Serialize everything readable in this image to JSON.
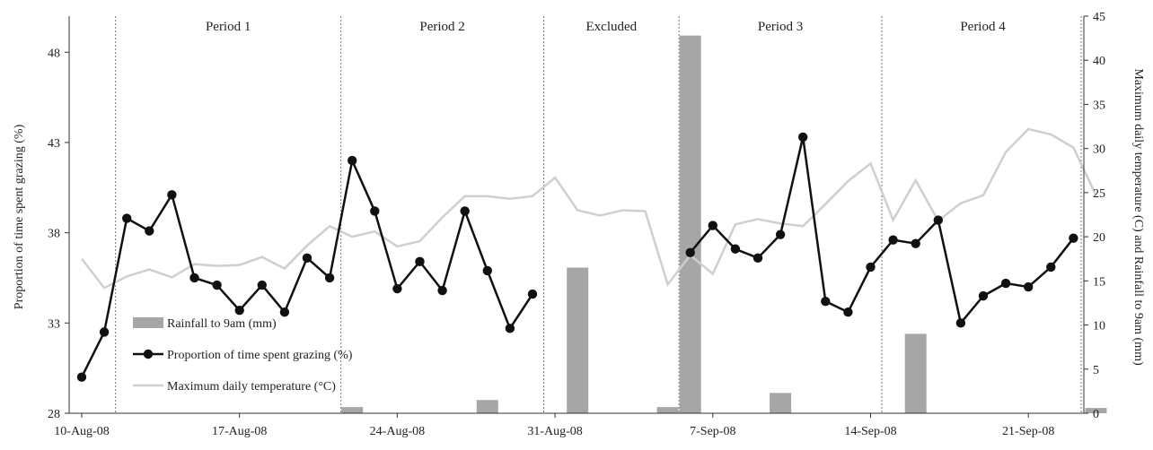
{
  "chart_data": {
    "type": "line",
    "left_axis": {
      "label": "Proportion of time spent grazing (%)",
      "ylim": [
        28,
        50
      ],
      "ticks": [
        28,
        33,
        38,
        43,
        48
      ]
    },
    "right_axis": {
      "label": "Maximum daily temperature (C) and Rainfall to 9am (mm)",
      "ylim": [
        0,
        45
      ],
      "ticks": [
        0,
        5,
        10,
        15,
        20,
        25,
        30,
        35,
        40,
        45
      ]
    },
    "x_axis": {
      "start": "2008-08-10",
      "end": "2008-09-25",
      "tick_dates": [
        "2008-08-10",
        "2008-08-17",
        "2008-08-24",
        "2008-08-31",
        "2008-09-07",
        "2008-09-14",
        "2008-09-21"
      ],
      "tick_labels": [
        "10-Aug-08",
        "17-Aug-08",
        "24-Aug-08",
        "31-Aug-08",
        "7-Sep-08",
        "14-Sep-08",
        "21-Sep-08"
      ]
    },
    "period_dividers": [
      "2008-08-12",
      "2008-08-22",
      "2008-08-31",
      "2008-09-06",
      "2008-09-15",
      "2008-09-25"
    ],
    "periods": [
      {
        "label": "Period 1",
        "start": "2008-08-12",
        "end": "2008-08-22"
      },
      {
        "label": "Period 2",
        "start": "2008-08-22",
        "end": "2008-08-31"
      },
      {
        "label": "Excluded",
        "start": "2008-08-31",
        "end": "2008-09-06"
      },
      {
        "label": "Period 3",
        "start": "2008-09-06",
        "end": "2008-09-15"
      },
      {
        "label": "Period 4",
        "start": "2008-09-15",
        "end": "2008-09-25"
      }
    ],
    "series": [
      {
        "name": "Rainfall to 9am (mm)",
        "type": "bar",
        "axis": "right",
        "color": "#a6a6a6",
        "points": [
          {
            "x": "2008-08-22",
            "y": 0.7
          },
          {
            "x": "2008-08-28",
            "y": 1.5
          },
          {
            "x": "2008-09-01",
            "y": 16.5
          },
          {
            "x": "2008-09-05",
            "y": 0.7
          },
          {
            "x": "2008-09-06",
            "y": 42.8
          },
          {
            "x": "2008-09-10",
            "y": 2.3
          },
          {
            "x": "2008-09-16",
            "y": 9.0
          },
          {
            "x": "2008-09-24",
            "y": 0.6
          }
        ]
      },
      {
        "name": "Proportion of time spent grazing (%)",
        "type": "line-markers",
        "axis": "left",
        "color": "#111111",
        "segments": [
          [
            {
              "x": "2008-08-10",
              "y": 30.0
            },
            {
              "x": "2008-08-11",
              "y": 32.5
            },
            {
              "x": "2008-08-12",
              "y": 38.8
            },
            {
              "x": "2008-08-13",
              "y": 38.1
            },
            {
              "x": "2008-08-14",
              "y": 40.1
            },
            {
              "x": "2008-08-15",
              "y": 35.5
            },
            {
              "x": "2008-08-16",
              "y": 35.1
            },
            {
              "x": "2008-08-17",
              "y": 33.7
            },
            {
              "x": "2008-08-18",
              "y": 35.1
            },
            {
              "x": "2008-08-19",
              "y": 33.6
            },
            {
              "x": "2008-08-20",
              "y": 36.6
            },
            {
              "x": "2008-08-21",
              "y": 35.5
            },
            {
              "x": "2008-08-22",
              "y": 42.0
            },
            {
              "x": "2008-08-23",
              "y": 39.2
            },
            {
              "x": "2008-08-24",
              "y": 34.9
            },
            {
              "x": "2008-08-25",
              "y": 36.4
            },
            {
              "x": "2008-08-26",
              "y": 34.8
            },
            {
              "x": "2008-08-27",
              "y": 39.2
            },
            {
              "x": "2008-08-28",
              "y": 35.9
            },
            {
              "x": "2008-08-29",
              "y": 32.7
            },
            {
              "x": "2008-08-30",
              "y": 34.6
            }
          ],
          [
            {
              "x": "2008-09-06",
              "y": 36.9
            },
            {
              "x": "2008-09-07",
              "y": 38.4
            },
            {
              "x": "2008-09-08",
              "y": 37.1
            },
            {
              "x": "2008-09-09",
              "y": 36.6
            },
            {
              "x": "2008-09-10",
              "y": 37.9
            },
            {
              "x": "2008-09-11",
              "y": 43.3
            },
            {
              "x": "2008-09-12",
              "y": 34.2
            },
            {
              "x": "2008-09-13",
              "y": 33.6
            },
            {
              "x": "2008-09-14",
              "y": 36.1
            },
            {
              "x": "2008-09-15",
              "y": 37.6
            },
            {
              "x": "2008-09-16",
              "y": 37.4
            },
            {
              "x": "2008-09-17",
              "y": 38.7
            },
            {
              "x": "2008-09-18",
              "y": 33.0
            },
            {
              "x": "2008-09-19",
              "y": 34.5
            },
            {
              "x": "2008-09-20",
              "y": 35.2
            },
            {
              "x": "2008-09-21",
              "y": 35.0
            },
            {
              "x": "2008-09-22",
              "y": 36.1
            },
            {
              "x": "2008-09-23",
              "y": 37.7
            }
          ]
        ]
      },
      {
        "name": "Maximum daily temperature (°C)",
        "type": "line",
        "axis": "right",
        "color": "#cfcfcf",
        "points": [
          {
            "x": "2008-08-10",
            "y": 17.5
          },
          {
            "x": "2008-08-11",
            "y": 14.2
          },
          {
            "x": "2008-08-12",
            "y": 15.5
          },
          {
            "x": "2008-08-13",
            "y": 16.3
          },
          {
            "x": "2008-08-14",
            "y": 15.4
          },
          {
            "x": "2008-08-15",
            "y": 16.9
          },
          {
            "x": "2008-08-16",
            "y": 16.7
          },
          {
            "x": "2008-08-17",
            "y": 16.8
          },
          {
            "x": "2008-08-18",
            "y": 17.7
          },
          {
            "x": "2008-08-19",
            "y": 16.4
          },
          {
            "x": "2008-08-20",
            "y": 19.0
          },
          {
            "x": "2008-08-21",
            "y": 21.2
          },
          {
            "x": "2008-08-22",
            "y": 20.0
          },
          {
            "x": "2008-08-23",
            "y": 20.6
          },
          {
            "x": "2008-08-24",
            "y": 18.9
          },
          {
            "x": "2008-08-25",
            "y": 19.5
          },
          {
            "x": "2008-08-26",
            "y": 22.2
          },
          {
            "x": "2008-08-27",
            "y": 24.6
          },
          {
            "x": "2008-08-28",
            "y": 24.6
          },
          {
            "x": "2008-08-29",
            "y": 24.3
          },
          {
            "x": "2008-08-30",
            "y": 24.6
          },
          {
            "x": "2008-08-31",
            "y": 26.7
          },
          {
            "x": "2008-09-01",
            "y": 23.0
          },
          {
            "x": "2008-09-02",
            "y": 22.4
          },
          {
            "x": "2008-09-03",
            "y": 23.0
          },
          {
            "x": "2008-09-04",
            "y": 22.9
          },
          {
            "x": "2008-09-05",
            "y": 14.6
          },
          {
            "x": "2008-09-06",
            "y": 17.9
          },
          {
            "x": "2008-09-07",
            "y": 15.8
          },
          {
            "x": "2008-09-08",
            "y": 21.4
          },
          {
            "x": "2008-09-09",
            "y": 22.0
          },
          {
            "x": "2008-09-10",
            "y": 21.5
          },
          {
            "x": "2008-09-11",
            "y": 21.2
          },
          {
            "x": "2008-09-12",
            "y": 23.7
          },
          {
            "x": "2008-09-13",
            "y": 26.3
          },
          {
            "x": "2008-09-14",
            "y": 28.3
          },
          {
            "x": "2008-09-15",
            "y": 21.9
          },
          {
            "x": "2008-09-16",
            "y": 26.4
          },
          {
            "x": "2008-09-17",
            "y": 21.8
          },
          {
            "x": "2008-09-18",
            "y": 23.8
          },
          {
            "x": "2008-09-19",
            "y": 24.7
          },
          {
            "x": "2008-09-20",
            "y": 29.6
          },
          {
            "x": "2008-09-21",
            "y": 32.2
          },
          {
            "x": "2008-09-22",
            "y": 31.6
          },
          {
            "x": "2008-09-23",
            "y": 30.1
          },
          {
            "x": "2008-09-24",
            "y": 24.7
          }
        ]
      }
    ],
    "legend": {
      "placement": "lower-left",
      "entries": [
        {
          "label": "Rainfall to 9am (mm)",
          "symbol": "bar"
        },
        {
          "label": "Proportion of time spent grazing (%)",
          "symbol": "line-marker"
        },
        {
          "label": "Maximum daily temperature (°C)",
          "symbol": "line"
        }
      ]
    },
    "grid": false
  }
}
